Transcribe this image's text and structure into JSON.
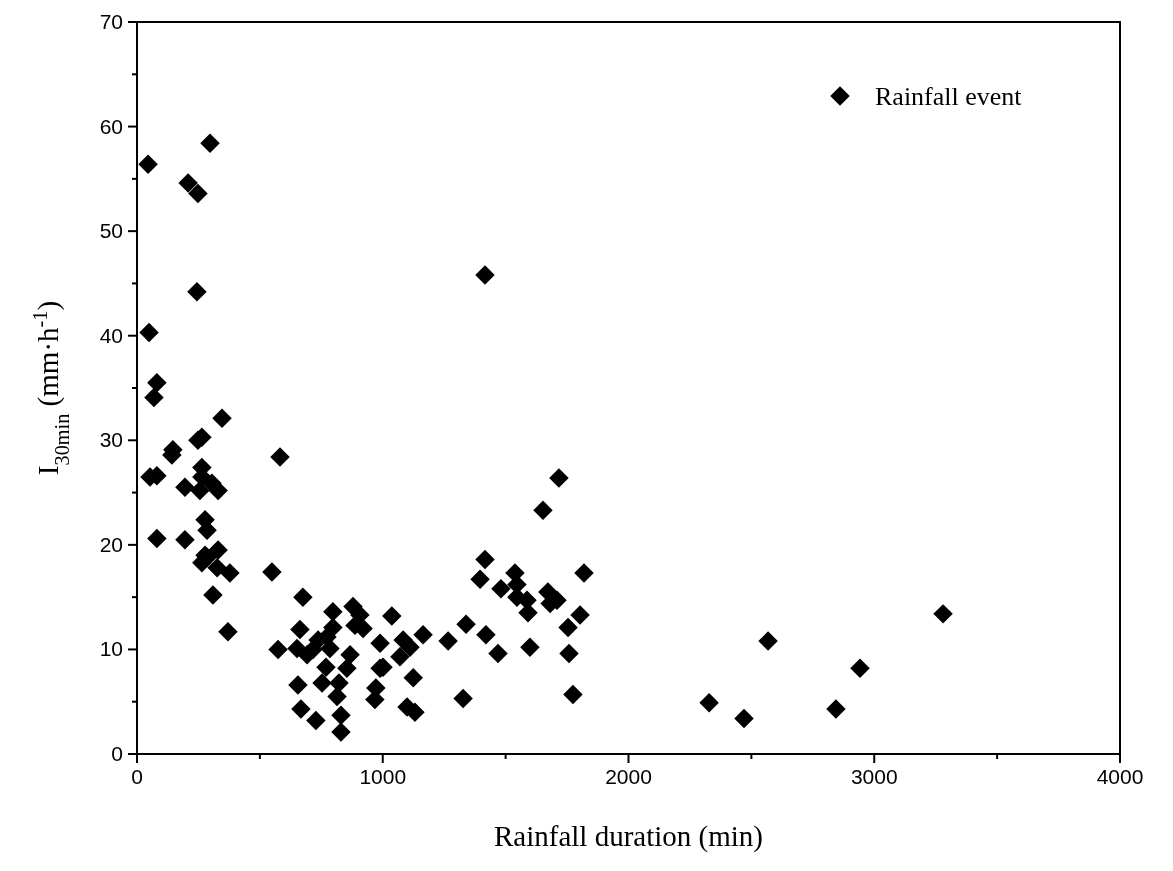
{
  "chart_data": {
    "type": "scatter",
    "xlabel": "Rainfall duration (min)",
    "ylabel": "I$_{30min}$ (mm·h$^{-1}$)",
    "xlim": [
      0,
      4000
    ],
    "ylim": [
      0,
      70
    ],
    "xticks": [
      0,
      {
        "value": 500,
        "label": null
      },
      1000,
      {
        "value": 1500,
        "label": null
      },
      2000,
      {
        "value": 2500,
        "label": null
      },
      3000,
      {
        "value": 3500,
        "label": null
      },
      4000
    ],
    "yticks": [
      0,
      {
        "value": 5,
        "label": null
      },
      10,
      {
        "value": 15,
        "label": null
      },
      20,
      {
        "value": 25,
        "label": null
      },
      30,
      {
        "value": 35,
        "label": null
      },
      40,
      {
        "value": 45,
        "label": null
      },
      50,
      {
        "value": 55,
        "label": null
      },
      60,
      {
        "value": 65,
        "label": null
      },
      70
    ],
    "grid": false,
    "legend": "top right",
    "marker": "diamond",
    "series": [
      {
        "name": "Rainfall event",
        "color": "#000000",
        "x": [
          45,
          208,
          248,
          297,
          244,
          49,
          81,
          69,
          346,
          264,
          248,
          146,
          142,
          582,
          53,
          81,
          264,
          195,
          256,
          330,
          305,
          264,
          277,
          285,
          81,
          195,
          330,
          264,
          277,
          326,
          378,
          285,
          549,
          309,
          675,
          370,
          574,
          1037,
          989,
          1083,
          1164,
          1070,
          1111,
          1001,
          1124,
          1099,
          1131,
          1266,
          1339,
          1420,
          1469,
          1327,
          1416,
          1396,
          1481,
          1538,
          1546,
          1587,
          1546,
          1591,
          1672,
          1709,
          1681,
          1819,
          1803,
          1754,
          1599,
          1758,
          1774,
          2328,
          2470,
          2568,
          1652,
          1717,
          1416,
          2844,
          2942,
          3280,
          651,
          663,
          655,
          667,
          692,
          728,
          753,
          769,
          785,
          773,
          797,
          797,
          814,
          822,
          830,
          830,
          854,
          867,
          879,
          887,
          907,
          920,
          968,
          972,
          989,
          737,
          716
        ],
        "values": [
          56.4,
          54.6,
          53.6,
          58.4,
          44.2,
          40.3,
          35.5,
          34.1,
          32.1,
          30.3,
          30.0,
          29.1,
          28.6,
          28.4,
          26.5,
          26.6,
          27.4,
          25.5,
          25.2,
          25.2,
          25.9,
          26.5,
          22.4,
          21.4,
          20.6,
          20.5,
          19.5,
          18.3,
          19.0,
          17.8,
          17.3,
          18.8,
          17.4,
          15.2,
          15.0,
          11.7,
          10.0,
          13.2,
          10.6,
          10.9,
          11.4,
          9.3,
          10.2,
          8.3,
          7.3,
          4.5,
          4.0,
          10.8,
          12.4,
          11.4,
          9.6,
          5.3,
          18.6,
          16.7,
          15.8,
          17.3,
          16.2,
          14.7,
          15.0,
          13.5,
          15.5,
          14.7,
          14.4,
          17.3,
          13.3,
          12.1,
          10.2,
          9.6,
          5.7,
          4.9,
          3.4,
          10.8,
          23.3,
          26.4,
          45.8,
          4.3,
          8.2,
          13.4,
          10.1,
          11.9,
          6.6,
          4.3,
          9.5,
          3.2,
          6.8,
          8.3,
          10.1,
          11.2,
          12.1,
          13.6,
          5.5,
          6.8,
          3.7,
          2.1,
          8.2,
          9.5,
          14.1,
          12.3,
          13.3,
          12.0,
          5.2,
          6.3,
          8.2,
          10.9,
          10.0
        ]
      }
    ]
  }
}
